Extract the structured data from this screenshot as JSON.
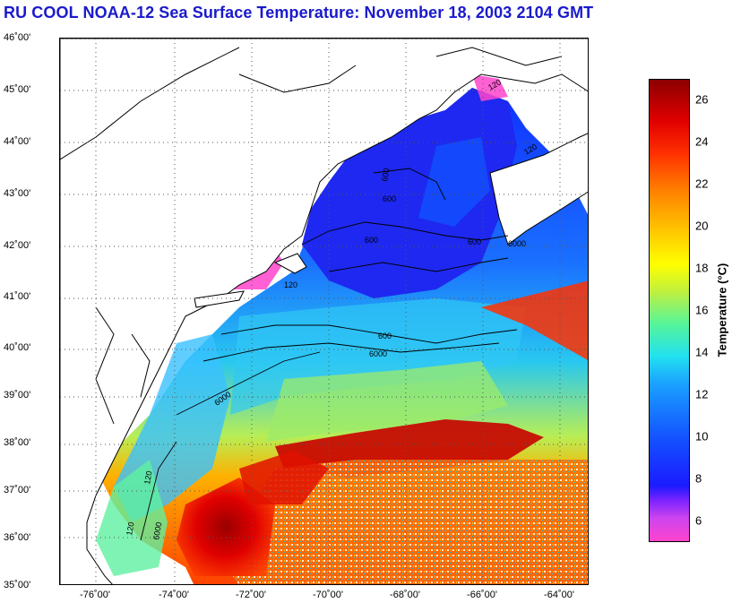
{
  "title": "RU COOL  NOAA-12  Sea Surface Temperature:  November 18, 2003 2104 GMT",
  "map": {
    "lat_labels": [
      "46˚00'",
      "45˚00'",
      "44˚00'",
      "43˚00'",
      "42˚00'",
      "41˚00'",
      "40˚00'",
      "39˚00'",
      "38˚00'",
      "37˚00'",
      "36˚00'",
      "35˚00'"
    ],
    "lon_labels": [
      "-76˚00'",
      "-74˚00'",
      "-72˚00'",
      "-70˚00'",
      "-68˚00'",
      "-66˚00'",
      "-64˚00'"
    ],
    "contour_labels": [
      "120",
      "120",
      "120",
      "600",
      "600",
      "600",
      "600",
      "600",
      "6000",
      "6000",
      "6000",
      "120",
      "120",
      "6000"
    ],
    "lat_range": [
      35,
      46
    ],
    "lon_range": [
      -77,
      -63
    ]
  },
  "colorbar": {
    "label": "Temperature (°C)",
    "ticks": [
      "26",
      "24",
      "22",
      "20",
      "18",
      "16",
      "14",
      "12",
      "10",
      "8",
      "6"
    ],
    "range": [
      5,
      27
    ]
  },
  "colors": {
    "title": "#1a1acc",
    "land": "#ffffff",
    "cold": "#1b1bff",
    "warm": "#e00000"
  }
}
